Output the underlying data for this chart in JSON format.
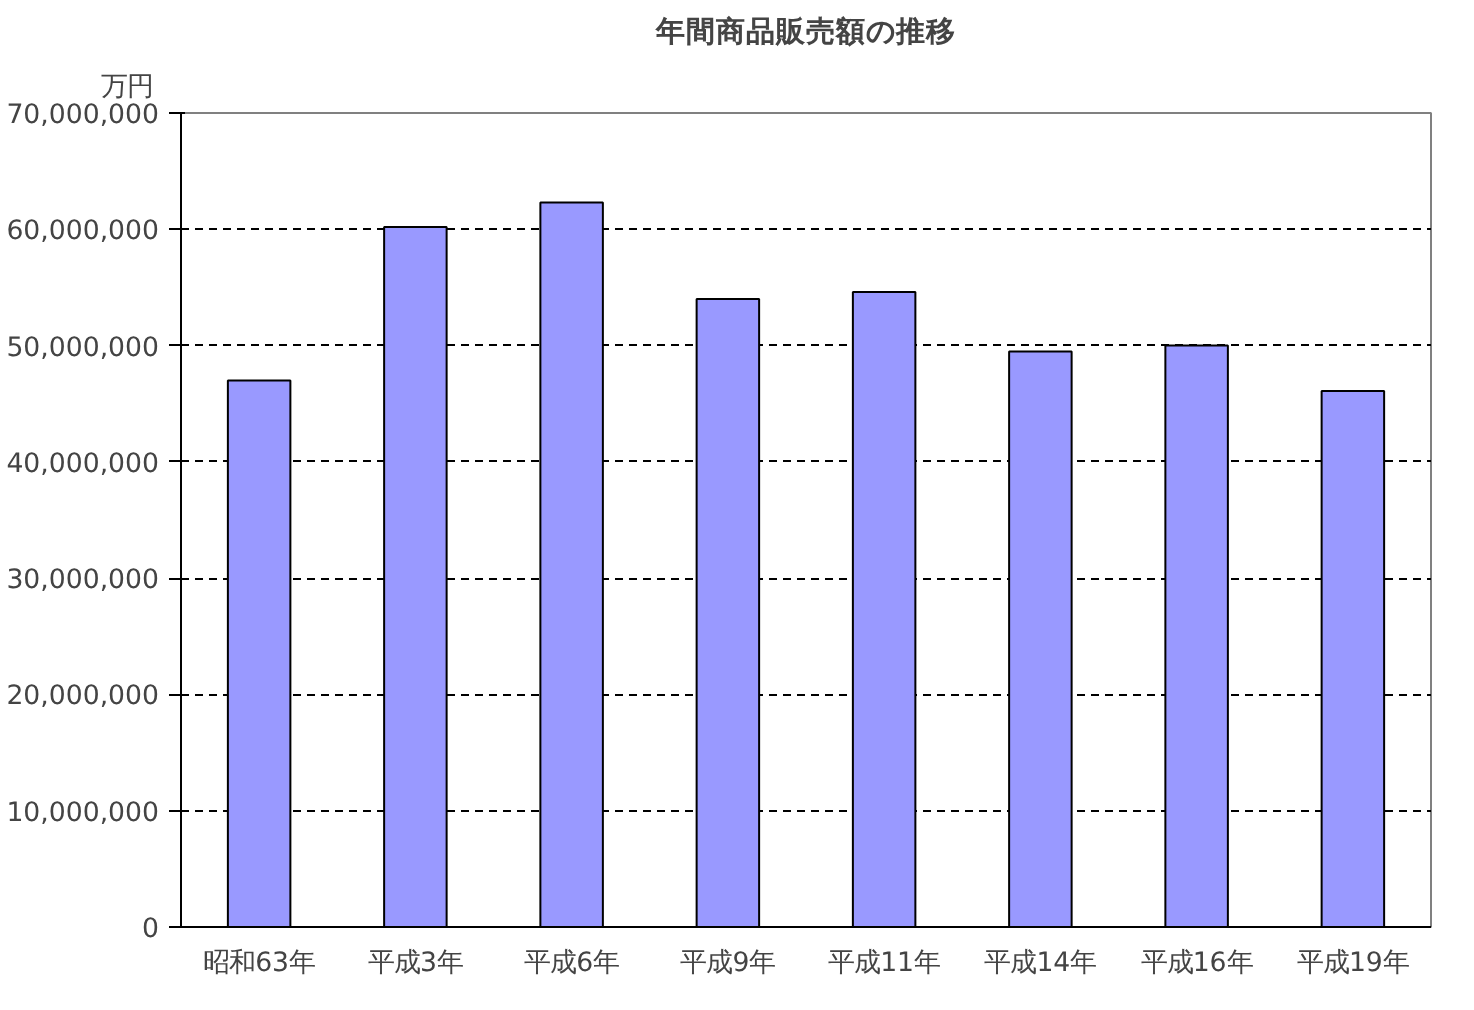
{
  "chart_data": {
    "type": "bar",
    "title": "年間商品販売額の推移",
    "ylabel": "万円",
    "categories": [
      "昭和63年",
      "平成3年",
      "平成6年",
      "平成9年",
      "平成11年",
      "平成14年",
      "平成16年",
      "平成19年"
    ],
    "values": [
      47000000,
      60200000,
      62300000,
      54000000,
      54600000,
      49500000,
      50000000,
      46100000
    ],
    "color": "#9999ff",
    "ylim": [
      0,
      70000000
    ],
    "yticks": [
      {
        "value": 0,
        "label": "0"
      },
      {
        "value": 10000000,
        "label": "10,000,000"
      },
      {
        "value": 20000000,
        "label": "20,000,000"
      },
      {
        "value": 30000000,
        "label": "30,000,000"
      },
      {
        "value": 40000000,
        "label": "40,000,000"
      },
      {
        "value": 50000000,
        "label": "50,000,000"
      },
      {
        "value": 60000000,
        "label": "60,000,000"
      },
      {
        "value": 70000000,
        "label": "70,000,000"
      }
    ],
    "grid": "y"
  }
}
